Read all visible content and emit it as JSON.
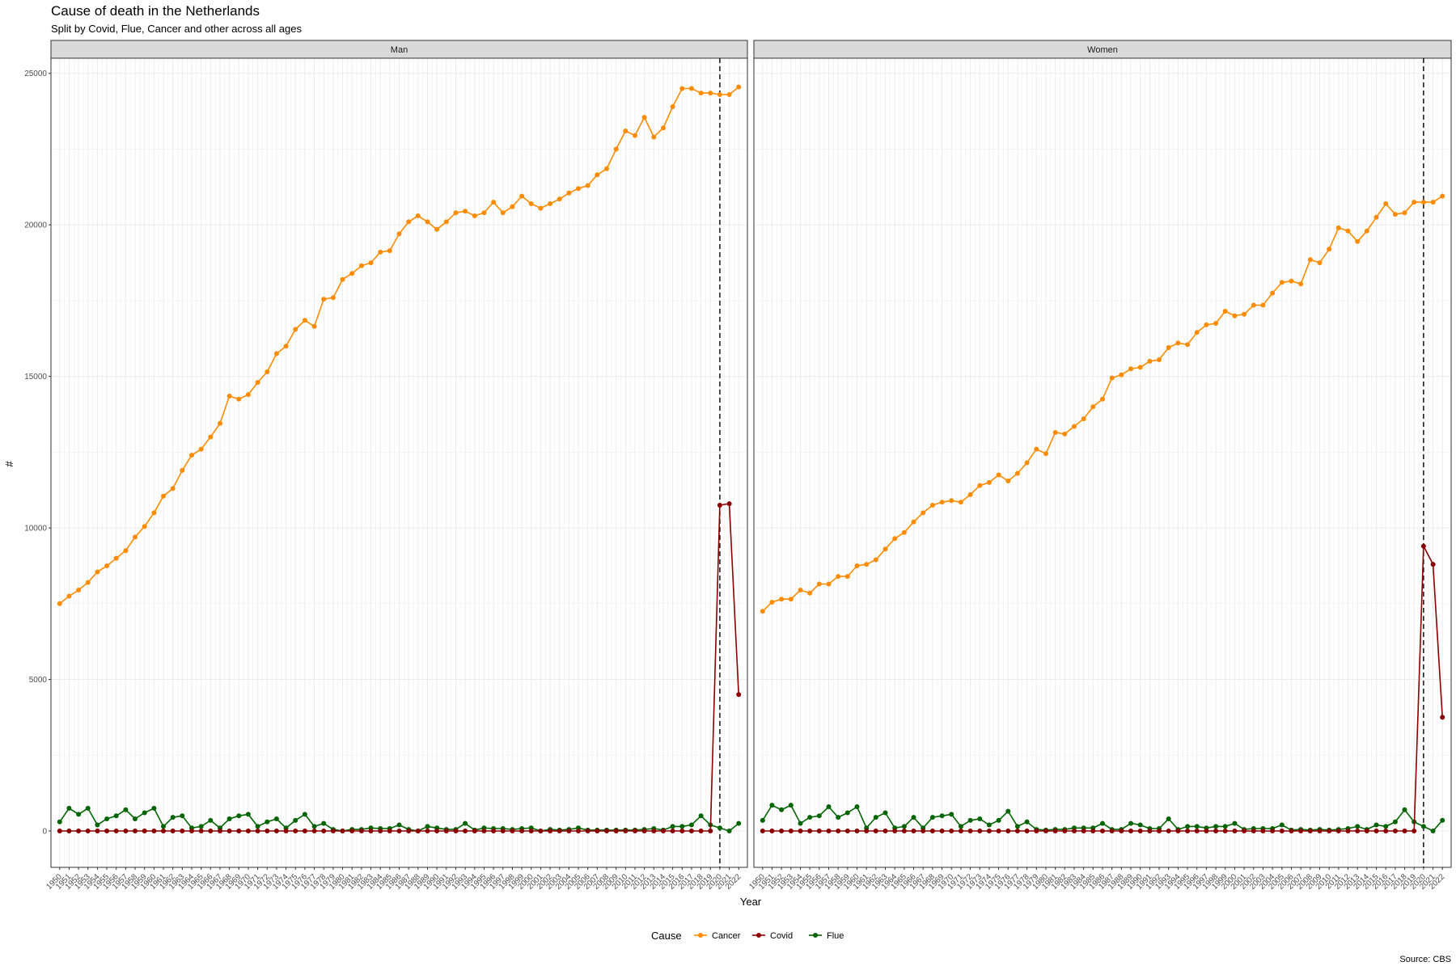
{
  "chart_data": {
    "type": "line",
    "title": "Cause of death in the Netherlands",
    "subtitle": "Split by Covid, Flue, Cancer and other across all ages",
    "xlabel": "Year",
    "ylabel": "#",
    "caption": "Source: CBS",
    "legend_title": "Cause",
    "legend_position": "bottom",
    "grid": true,
    "ylim": [
      -1200,
      25500
    ],
    "yticks": [
      0,
      5000,
      10000,
      15000,
      20000,
      25000
    ],
    "x_start": 1950,
    "x_end": 2022,
    "vline_x": 2020,
    "series_colors": {
      "Cancer": "#ff8c00",
      "Covid": "#8b0000",
      "Flue": "#006400"
    },
    "panels": [
      {
        "name": "Man",
        "series": [
          {
            "name": "Cancer",
            "values": [
              7500,
              7750,
              7950,
              8200,
              8550,
              8750,
              9000,
              9250,
              9700,
              10050,
              10500,
              11050,
              11300,
              11900,
              12400,
              12600,
              13000,
              13450,
              14350,
              14250,
              14400,
              14800,
              15150,
              15750,
              16000,
              16550,
              16850,
              16650,
              17550,
              17600,
              18200,
              18400,
              18650,
              18750,
              19100,
              19150,
              19700,
              20100,
              20300,
              20100,
              19850,
              20100,
              20400,
              20450,
              20300,
              20400,
              20750,
              20400,
              20600,
              20950,
              20700,
              20550,
              20700,
              20850,
              21050,
              21200,
              21300,
              21650,
              21850,
              22500,
              23100,
              22950,
              23550,
              22900,
              23200,
              23900,
              24500,
              24500,
              24350,
              24350,
              24300,
              24300,
              24550
            ]
          },
          {
            "name": "Flue",
            "values": [
              300,
              750,
              550,
              750,
              200,
              400,
              500,
              700,
              400,
              600,
              750,
              150,
              450,
              500,
              100,
              150,
              350,
              100,
              400,
              500,
              550,
              150,
              300,
              400,
              100,
              350,
              550,
              150,
              250,
              50,
              0,
              50,
              50,
              100,
              80,
              80,
              200,
              50,
              0,
              150,
              100,
              50,
              50,
              250,
              30,
              100,
              80,
              80,
              50,
              80,
              100,
              0,
              50,
              30,
              50,
              100,
              30,
              30,
              30,
              30,
              30,
              30,
              50,
              80,
              30,
              150,
              150,
              200,
              500,
              200,
              100,
              0,
              250
            ]
          },
          {
            "name": "Covid",
            "values": [
              0,
              0,
              0,
              0,
              0,
              0,
              0,
              0,
              0,
              0,
              0,
              0,
              0,
              0,
              0,
              0,
              0,
              0,
              0,
              0,
              0,
              0,
              0,
              0,
              0,
              0,
              0,
              0,
              0,
              0,
              0,
              0,
              0,
              0,
              0,
              0,
              0,
              0,
              0,
              0,
              0,
              0,
              0,
              0,
              0,
              0,
              0,
              0,
              0,
              0,
              0,
              0,
              0,
              0,
              0,
              0,
              0,
              0,
              0,
              0,
              0,
              0,
              0,
              0,
              0,
              0,
              0,
              0,
              0,
              0,
              10750,
              10800,
              4500
            ]
          }
        ]
      },
      {
        "name": "Women",
        "series": [
          {
            "name": "Cancer",
            "values": [
              7250,
              7550,
              7650,
              7650,
              7950,
              7850,
              8150,
              8150,
              8400,
              8400,
              8750,
              8800,
              8950,
              9300,
              9650,
              9850,
              10200,
              10500,
              10750,
              10850,
              10900,
              10850,
              11100,
              11400,
              11500,
              11750,
              11550,
              11800,
              12150,
              12600,
              12450,
              13150,
              13100,
              13350,
              13600,
              14000,
              14250,
              14950,
              15050,
              15250,
              15300,
              15500,
              15550,
              15950,
              16100,
              16050,
              16450,
              16700,
              16750,
              17150,
              17000,
              17050,
              17350,
              17350,
              17750,
              18100,
              18150,
              18050,
              18850,
              18750,
              19200,
              19900,
              19800,
              19450,
              19800,
              20250,
              20700,
              20350,
              20400,
              20750,
              20750,
              20750,
              20950
            ]
          },
          {
            "name": "Flue",
            "values": [
              350,
              850,
              700,
              850,
              250,
              450,
              500,
              800,
              450,
              600,
              800,
              100,
              450,
              600,
              100,
              150,
              450,
              100,
              450,
              500,
              550,
              150,
              350,
              400,
              200,
              350,
              650,
              150,
              300,
              50,
              30,
              50,
              50,
              100,
              100,
              100,
              250,
              50,
              50,
              250,
              200,
              80,
              80,
              400,
              50,
              150,
              150,
              100,
              150,
              150,
              250,
              50,
              80,
              80,
              80,
              200,
              30,
              50,
              30,
              50,
              30,
              50,
              80,
              150,
              50,
              200,
              150,
              300,
              700,
              300,
              150,
              0,
              350
            ]
          },
          {
            "name": "Covid",
            "values": [
              0,
              0,
              0,
              0,
              0,
              0,
              0,
              0,
              0,
              0,
              0,
              0,
              0,
              0,
              0,
              0,
              0,
              0,
              0,
              0,
              0,
              0,
              0,
              0,
              0,
              0,
              0,
              0,
              0,
              0,
              0,
              0,
              0,
              0,
              0,
              0,
              0,
              0,
              0,
              0,
              0,
              0,
              0,
              0,
              0,
              0,
              0,
              0,
              0,
              0,
              0,
              0,
              0,
              0,
              0,
              0,
              0,
              0,
              0,
              0,
              0,
              0,
              0,
              0,
              0,
              0,
              0,
              0,
              0,
              0,
              9400,
              8800,
              3750
            ]
          }
        ]
      }
    ]
  }
}
